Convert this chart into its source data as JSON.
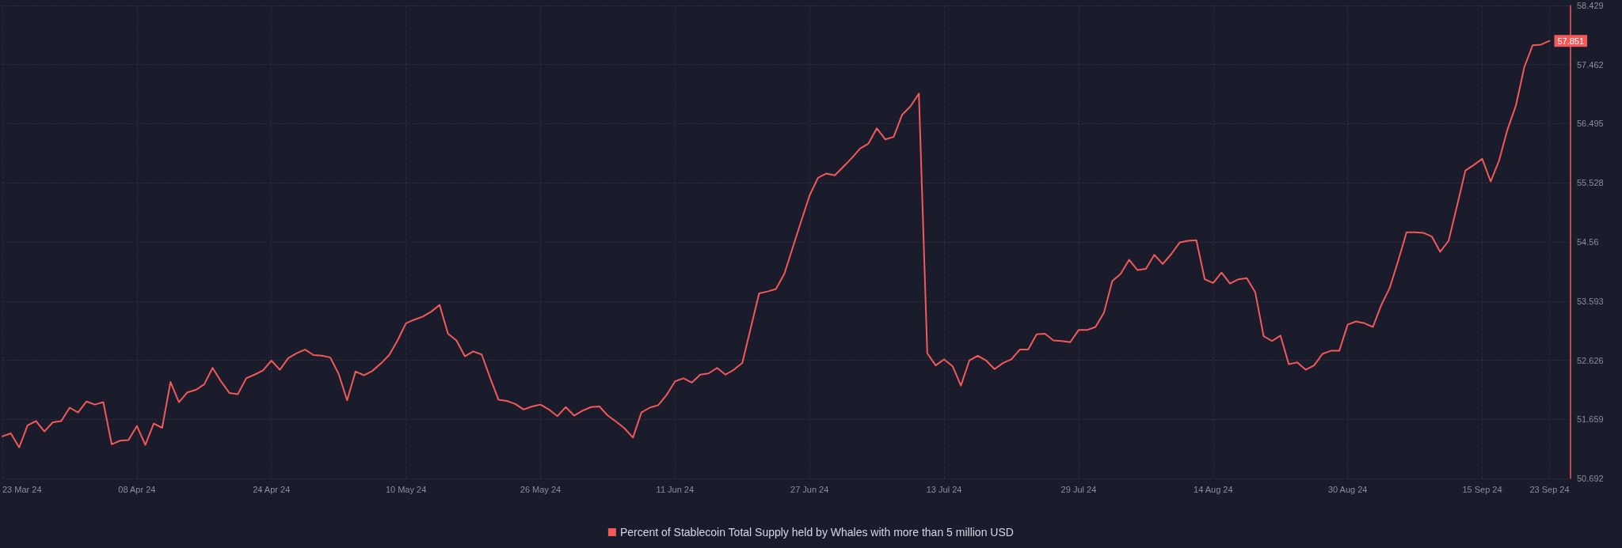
{
  "chart_data": {
    "type": "line",
    "x": [
      "2024-03-23",
      "2024-03-24",
      "2024-03-25",
      "2024-03-26",
      "2024-03-27",
      "2024-03-28",
      "2024-03-29",
      "2024-03-30",
      "2024-03-31",
      "2024-04-01",
      "2024-04-02",
      "2024-04-03",
      "2024-04-04",
      "2024-04-05",
      "2024-04-06",
      "2024-04-07",
      "2024-04-08",
      "2024-04-09",
      "2024-04-10",
      "2024-04-11",
      "2024-04-12",
      "2024-04-13",
      "2024-04-14",
      "2024-04-15",
      "2024-04-16",
      "2024-04-17",
      "2024-04-18",
      "2024-04-19",
      "2024-04-20",
      "2024-04-21",
      "2024-04-22",
      "2024-04-23",
      "2024-04-24",
      "2024-04-25",
      "2024-04-26",
      "2024-04-27",
      "2024-04-28",
      "2024-04-29",
      "2024-04-30",
      "2024-05-01",
      "2024-05-02",
      "2024-05-03",
      "2024-05-04",
      "2024-05-05",
      "2024-05-06",
      "2024-05-07",
      "2024-05-08",
      "2024-05-09",
      "2024-05-10",
      "2024-05-11",
      "2024-05-12",
      "2024-05-13",
      "2024-05-14",
      "2024-05-15",
      "2024-05-16",
      "2024-05-17",
      "2024-05-18",
      "2024-05-19",
      "2024-05-20",
      "2024-05-21",
      "2024-05-22",
      "2024-05-23",
      "2024-05-24",
      "2024-05-25",
      "2024-05-26",
      "2024-05-27",
      "2024-05-28",
      "2024-05-29",
      "2024-05-30",
      "2024-05-31",
      "2024-06-01",
      "2024-06-02",
      "2024-06-03",
      "2024-06-04",
      "2024-06-05",
      "2024-06-06",
      "2024-06-07",
      "2024-06-08",
      "2024-06-09",
      "2024-06-10",
      "2024-06-11",
      "2024-06-12",
      "2024-06-13",
      "2024-06-14",
      "2024-06-15",
      "2024-06-16",
      "2024-06-17",
      "2024-06-18",
      "2024-06-19",
      "2024-06-20",
      "2024-06-21",
      "2024-06-22",
      "2024-06-23",
      "2024-06-24",
      "2024-06-25",
      "2024-06-26",
      "2024-06-27",
      "2024-06-28",
      "2024-06-29",
      "2024-06-30",
      "2024-07-01",
      "2024-07-02",
      "2024-07-03",
      "2024-07-04",
      "2024-07-05",
      "2024-07-06",
      "2024-07-07",
      "2024-07-08",
      "2024-07-09",
      "2024-07-10",
      "2024-07-11",
      "2024-07-12",
      "2024-07-13",
      "2024-07-14",
      "2024-07-15",
      "2024-07-16",
      "2024-07-17",
      "2024-07-18",
      "2024-07-19",
      "2024-07-20",
      "2024-07-21",
      "2024-07-22",
      "2024-07-23",
      "2024-07-24",
      "2024-07-25",
      "2024-07-26",
      "2024-07-27",
      "2024-07-28",
      "2024-07-29",
      "2024-07-30",
      "2024-07-31",
      "2024-08-01",
      "2024-08-02",
      "2024-08-03",
      "2024-08-04",
      "2024-08-05",
      "2024-08-06",
      "2024-08-07",
      "2024-08-08",
      "2024-08-09",
      "2024-08-10",
      "2024-08-11",
      "2024-08-12",
      "2024-08-13",
      "2024-08-14",
      "2024-08-15",
      "2024-08-16",
      "2024-08-17",
      "2024-08-18",
      "2024-08-19",
      "2024-08-20",
      "2024-08-21",
      "2024-08-22",
      "2024-08-23",
      "2024-08-24",
      "2024-08-25",
      "2024-08-26",
      "2024-08-27",
      "2024-08-28",
      "2024-08-29",
      "2024-08-30",
      "2024-08-31",
      "2024-09-01",
      "2024-09-02",
      "2024-09-03",
      "2024-09-04",
      "2024-09-05",
      "2024-09-06",
      "2024-09-07",
      "2024-09-08",
      "2024-09-09",
      "2024-09-10",
      "2024-09-11",
      "2024-09-12",
      "2024-09-13",
      "2024-09-14",
      "2024-09-15",
      "2024-09-16",
      "2024-09-17",
      "2024-09-18",
      "2024-09-19",
      "2024-09-20",
      "2024-09-21",
      "2024-09-22",
      "2024-09-23"
    ],
    "series": [
      {
        "name": "Percent of Stablecoin Total Supply held by Whales with more than 5 million USD",
        "color": "#f25a5a",
        "values": [
          51.38,
          51.43,
          51.2,
          51.56,
          51.63,
          51.46,
          51.61,
          51.63,
          51.85,
          51.77,
          51.95,
          51.9,
          51.94,
          51.25,
          51.31,
          51.32,
          51.55,
          51.24,
          51.59,
          51.52,
          52.27,
          51.94,
          52.1,
          52.14,
          52.23,
          52.5,
          52.28,
          52.09,
          52.07,
          52.33,
          52.39,
          52.46,
          52.62,
          52.47,
          52.66,
          52.74,
          52.8,
          52.71,
          52.7,
          52.67,
          52.4,
          51.97,
          52.44,
          52.38,
          52.45,
          52.57,
          52.71,
          52.95,
          53.23,
          53.29,
          53.34,
          53.42,
          53.53,
          53.06,
          52.95,
          52.69,
          52.77,
          52.72,
          52.34,
          51.98,
          51.96,
          51.91,
          51.82,
          51.87,
          51.9,
          51.82,
          51.71,
          51.86,
          51.72,
          51.8,
          51.86,
          51.87,
          51.72,
          51.62,
          51.51,
          51.36,
          51.77,
          51.85,
          51.89,
          52.06,
          52.28,
          52.33,
          52.26,
          52.39,
          52.41,
          52.5,
          52.39,
          52.47,
          52.58,
          53.15,
          53.72,
          53.75,
          53.79,
          54.04,
          54.47,
          54.9,
          55.32,
          55.61,
          55.68,
          55.65,
          55.79,
          55.93,
          56.09,
          56.17,
          56.42,
          56.24,
          56.28,
          56.64,
          56.78,
          56.99,
          52.74,
          52.54,
          52.64,
          52.53,
          52.21,
          52.62,
          52.7,
          52.62,
          52.48,
          52.58,
          52.64,
          52.8,
          52.8,
          53.05,
          53.06,
          52.95,
          52.94,
          52.92,
          53.12,
          53.12,
          53.17,
          53.4,
          53.92,
          54.04,
          54.27,
          54.1,
          54.12,
          54.35,
          54.2,
          54.36,
          54.55,
          54.58,
          54.59,
          53.95,
          53.89,
          54.06,
          53.88,
          53.95,
          53.97,
          53.74,
          53.02,
          52.94,
          53.03,
          52.56,
          52.59,
          52.47,
          52.54,
          52.73,
          52.78,
          52.78,
          53.21,
          53.26,
          53.23,
          53.17,
          53.53,
          53.81,
          54.25,
          54.72,
          54.72,
          54.71,
          54.65,
          54.4,
          54.58,
          55.15,
          55.73,
          55.82,
          55.92,
          55.55,
          55.89,
          56.4,
          56.79,
          57.42,
          57.78,
          57.79,
          57.851
        ],
        "value_labels": [
          null,
          null,
          null,
          null,
          null,
          null,
          null,
          null,
          null,
          null,
          null,
          null,
          null,
          null,
          null,
          null,
          null,
          null,
          null,
          null,
          null,
          null,
          null,
          null,
          null,
          null,
          null,
          null,
          null,
          null,
          null,
          null,
          null,
          null,
          null,
          null,
          null,
          null,
          null,
          null,
          null,
          null,
          null,
          null,
          null,
          null,
          null,
          null,
          null,
          null,
          null,
          null,
          null,
          null,
          null,
          null,
          null,
          null,
          null,
          null,
          null,
          null,
          null,
          null,
          null,
          null,
          null,
          null,
          null,
          null,
          null,
          null,
          null,
          null,
          null,
          null,
          null,
          null,
          null,
          null,
          null,
          null,
          null,
          null,
          null,
          null,
          null,
          null,
          null,
          null,
          null,
          null,
          null,
          null,
          null,
          null,
          null,
          null,
          null,
          null,
          null,
          null,
          null,
          null,
          null,
          null,
          null,
          null,
          null,
          null,
          null,
          null,
          null,
          null,
          null,
          null,
          null,
          null,
          null,
          null,
          null,
          null,
          null,
          null,
          null,
          null,
          null,
          null,
          null,
          null,
          null,
          null,
          null,
          null,
          null,
          null,
          null,
          null,
          null,
          null,
          null,
          null,
          null,
          null,
          null,
          null,
          null,
          null,
          null,
          null,
          null,
          null,
          null,
          null,
          null,
          null,
          null,
          null,
          null,
          null,
          null,
          null,
          null,
          null,
          null,
          null,
          null,
          null,
          null,
          null,
          null,
          null,
          null,
          null,
          null,
          null,
          null,
          null,
          null,
          null,
          null,
          null,
          null,
          null,
          "57.851"
        ]
      }
    ],
    "xlim": [
      "2024-03-23",
      "2024-09-25T12:00"
    ],
    "xticks": [
      {
        "value": "2024-03-23",
        "label": "23 Mar 24"
      },
      {
        "value": "2024-04-08",
        "label": "08 Apr 24"
      },
      {
        "value": "2024-04-24",
        "label": "24 Apr 24"
      },
      {
        "value": "2024-05-10",
        "label": "10 May 24"
      },
      {
        "value": "2024-05-26",
        "label": "26 May 24"
      },
      {
        "value": "2024-06-11",
        "label": "11 Jun 24"
      },
      {
        "value": "2024-06-27",
        "label": "27 Jun 24"
      },
      {
        "value": "2024-07-13",
        "label": "13 Jul 24"
      },
      {
        "value": "2024-07-29",
        "label": "29 Jul 24"
      },
      {
        "value": "2024-08-14",
        "label": "14 Aug 24"
      },
      {
        "value": "2024-08-30",
        "label": "30 Aug 24"
      },
      {
        "value": "2024-09-15",
        "label": "15 Sep 24"
      },
      {
        "value": "2024-09-23",
        "label": "23 Sep 24"
      }
    ],
    "ylim": [
      50.692,
      58.429
    ],
    "yticks": [
      50.692,
      51.659,
      52.626,
      53.593,
      54.56,
      55.528,
      56.495,
      57.462,
      58.429
    ],
    "grid": true,
    "legend": "bottom",
    "marker": "none",
    "line_style": "solid"
  }
}
